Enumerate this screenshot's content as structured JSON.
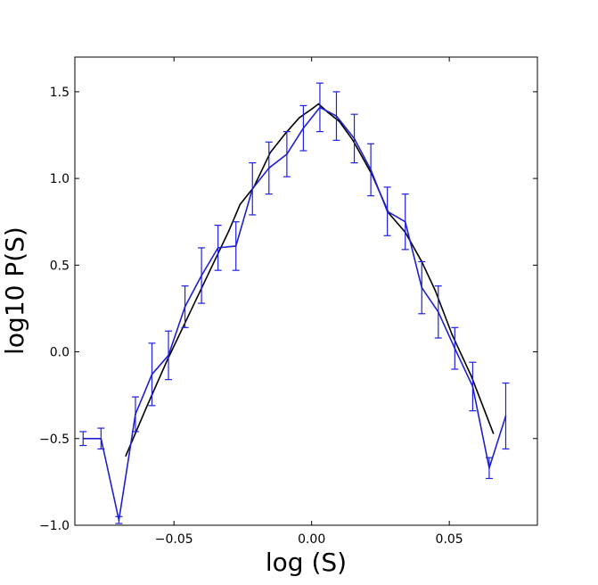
{
  "chart_data": {
    "type": "line",
    "xlabel": "log (S)",
    "ylabel": "log10 P(S)",
    "xlim": [
      -0.086,
      0.082
    ],
    "ylim": [
      -1.0,
      1.7
    ],
    "grid": false,
    "legend": "none",
    "x_ticks": [
      -0.05,
      0.0,
      0.05
    ],
    "x_tick_labels": [
      "−0.05",
      "0.00",
      "0.05"
    ],
    "y_ticks": [
      -1.0,
      -0.5,
      0.0,
      0.5,
      1.0,
      1.5
    ],
    "y_tick_labels": [
      "−1.0",
      "−0.5",
      "0.0",
      "0.5",
      "1.0",
      "1.5"
    ],
    "series": [
      {
        "color": "#000000",
        "x": [
          -0.0675,
          -0.06,
          -0.0525,
          -0.045,
          -0.0375,
          -0.03,
          -0.026,
          -0.021,
          -0.015,
          -0.0095,
          -0.0045,
          0.0,
          0.0025,
          0.006,
          0.01,
          0.015,
          0.022,
          0.028,
          0.034,
          0.04,
          0.045,
          0.051,
          0.058,
          0.066
        ],
        "y": [
          -0.6,
          -0.32,
          -0.05,
          0.2,
          0.45,
          0.7,
          0.85,
          0.95,
          1.15,
          1.26,
          1.35,
          1.4,
          1.43,
          1.38,
          1.33,
          1.22,
          1.02,
          0.8,
          0.69,
          0.52,
          0.35,
          0.1,
          -0.14,
          -0.47
        ]
      },
      {
        "color": "#1f1fd0",
        "errorbar_color": "#2020e0",
        "x": [
          -0.083,
          -0.0765,
          -0.07,
          -0.064,
          -0.058,
          -0.052,
          -0.046,
          -0.04,
          -0.034,
          -0.0275,
          -0.0215,
          -0.0155,
          -0.009,
          -0.003,
          0.003,
          0.009,
          0.0155,
          0.0215,
          0.0275,
          0.034,
          0.04,
          0.046,
          0.052,
          0.0585,
          0.0645,
          0.0705
        ],
        "y": [
          -0.5,
          -0.5,
          -0.97,
          -0.36,
          -0.13,
          -0.02,
          0.26,
          0.44,
          0.6,
          0.61,
          0.94,
          1.06,
          1.14,
          1.29,
          1.41,
          1.36,
          1.23,
          1.05,
          0.81,
          0.75,
          0.37,
          0.23,
          0.02,
          -0.2,
          -0.67,
          -0.37
        ],
        "yerr": [
          0.04,
          0.06,
          0.02,
          0.1,
          0.18,
          0.14,
          0.12,
          0.16,
          0.13,
          0.14,
          0.15,
          0.15,
          0.13,
          0.13,
          0.14,
          0.14,
          0.14,
          0.15,
          0.14,
          0.16,
          0.15,
          0.15,
          0.12,
          0.14,
          0.06,
          0.19
        ]
      }
    ]
  }
}
